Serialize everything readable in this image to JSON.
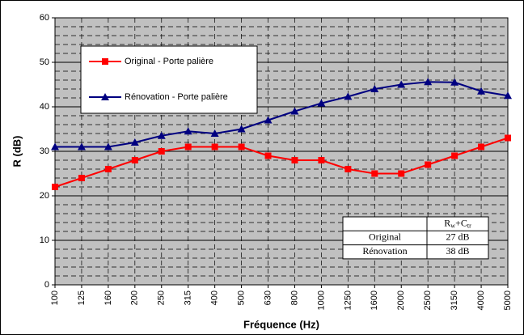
{
  "chart_data": {
    "type": "line",
    "xlabel": "Fréquence (Hz)",
    "ylabel": "R (dB)",
    "categories": [
      "100",
      "125",
      "160",
      "200",
      "250",
      "315",
      "400",
      "500",
      "630",
      "800",
      "1000",
      "1250",
      "1600",
      "2000",
      "2500",
      "3150",
      "4000",
      "5000"
    ],
    "series": [
      {
        "name": "Original - Porte palière",
        "color": "#ff0000",
        "marker": "square",
        "values": [
          22,
          24,
          26,
          28,
          30,
          31,
          31,
          31,
          29,
          28,
          28,
          26,
          25,
          25,
          27,
          29,
          31,
          33
        ]
      },
      {
        "name": "Rénovation - Porte palière",
        "color": "#000080",
        "marker": "triangle",
        "values": [
          31,
          31,
          31,
          32,
          33.5,
          34.5,
          34,
          35,
          37,
          39,
          40.8,
          42.3,
          44,
          45,
          45.6,
          45.5,
          43.5,
          42.5
        ]
      }
    ],
    "ylim": [
      0,
      60
    ],
    "yticks": [
      0,
      10,
      20,
      30,
      40,
      50,
      60
    ],
    "yticks_minor": [
      2,
      4,
      6,
      8,
      12,
      14,
      16,
      18,
      22,
      24,
      26,
      28,
      32,
      34,
      36,
      38,
      42,
      44,
      46,
      48,
      52,
      54,
      56,
      58
    ],
    "grid": true,
    "plot_background": "#c0c0c0",
    "legend": "upper left",
    "table": {
      "header_parts": [
        "R",
        "w",
        "+C",
        "tr"
      ],
      "rows": [
        [
          "Original",
          "27 dB"
        ],
        [
          "Rénovation",
          "38 dB"
        ]
      ]
    }
  }
}
